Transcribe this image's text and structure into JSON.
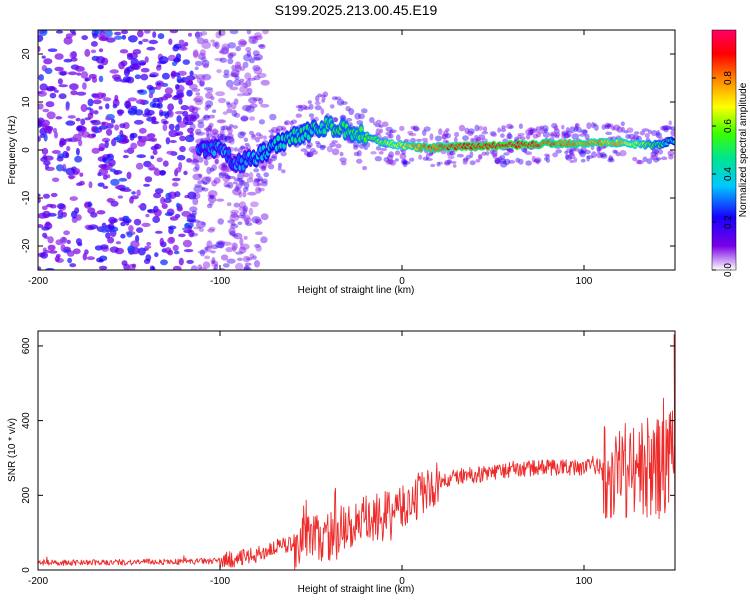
{
  "figure": {
    "title": "S199.2025.213.00.45.E19"
  },
  "chart_data": [
    {
      "type": "heatmap",
      "title": "S199.2025.213.00.45.E19",
      "xlabel": "Height of straight line (km)",
      "ylabel": "Frequency (Hz)",
      "xlim": [
        -200,
        150
      ],
      "ylim": [
        -25,
        25
      ],
      "xticks": [
        -200,
        -100,
        0,
        100
      ],
      "yticks": [
        -20,
        -10,
        0,
        10,
        20
      ],
      "xtick_labels": [
        "-200",
        "-100",
        "0",
        "100"
      ],
      "ytick_labels": [
        "-20",
        "-10",
        "0",
        "10",
        "20"
      ],
      "colorbar": {
        "label": "Normalized spectral amplitude",
        "range": [
          0,
          1
        ],
        "ticks": [
          0.0,
          0.2,
          0.4,
          0.6,
          0.8
        ],
        "tick_labels": [
          "0.0",
          "0.2",
          "0.4",
          "0.6",
          "0.8"
        ],
        "colormap": "rainbow (white-purple-blue-cyan-green-yellow-orange-red-magenta)",
        "colors": [
          "#ffffff",
          "#7a00e6",
          "#1800ff",
          "#00c8ff",
          "#00e68a",
          "#3dff00",
          "#ffff00",
          "#ff8000",
          "#ff0000",
          "#ff0066"
        ]
      },
      "ridge": {
        "description": "Dominant frequency trace",
        "x": [
          -110,
          -100,
          -90,
          -80,
          -70,
          -60,
          -50,
          -40,
          -30,
          -20,
          -10,
          0,
          10,
          20,
          40,
          60,
          80,
          100,
          120,
          140,
          150
        ],
        "y": [
          0,
          0,
          -3,
          -1.5,
          1,
          3,
          4,
          5,
          4,
          3,
          1.5,
          1,
          0.5,
          0.5,
          0.8,
          1,
          1.3,
          1.5,
          1.5,
          1,
          2
        ],
        "amplitude": [
          0.3,
          0.3,
          0.3,
          0.35,
          0.4,
          0.45,
          0.45,
          0.5,
          0.5,
          0.55,
          0.6,
          0.7,
          0.8,
          0.85,
          0.9,
          0.95,
          0.85,
          0.8,
          0.75,
          0.5,
          0.4
        ]
      }
    },
    {
      "type": "line",
      "xlabel": "Height of straight line (km)",
      "ylabel": "SNR (10 * v/v)",
      "xlim": [
        -200,
        150
      ],
      "ylim": [
        0,
        640
      ],
      "xticks": [
        -200,
        -100,
        0,
        100
      ],
      "yticks": [
        0,
        200,
        400,
        600
      ],
      "xtick_labels": [
        "-200",
        "-100",
        "0",
        "100"
      ],
      "ytick_labels": [
        "0",
        "200",
        "400",
        "600"
      ],
      "color": "#ee2b2b",
      "series": [
        {
          "x": [
            -200,
            -180,
            -160,
            -140,
            -120,
            -100,
            -90,
            -80,
            -70,
            -60,
            -50,
            -40,
            -30,
            -20,
            -10,
            -5,
            0,
            5,
            10,
            20,
            30,
            40,
            50,
            60,
            70,
            80,
            90,
            100,
            110,
            115,
            120,
            130,
            140,
            145,
            150
          ],
          "y": [
            20,
            20,
            20,
            22,
            22,
            25,
            30,
            40,
            60,
            70,
            80,
            90,
            110,
            130,
            140,
            150,
            165,
            180,
            200,
            230,
            250,
            255,
            260,
            270,
            272,
            275,
            275,
            275,
            278,
            275,
            270,
            270,
            270,
            280,
            300
          ]
        }
      ]
    }
  ]
}
